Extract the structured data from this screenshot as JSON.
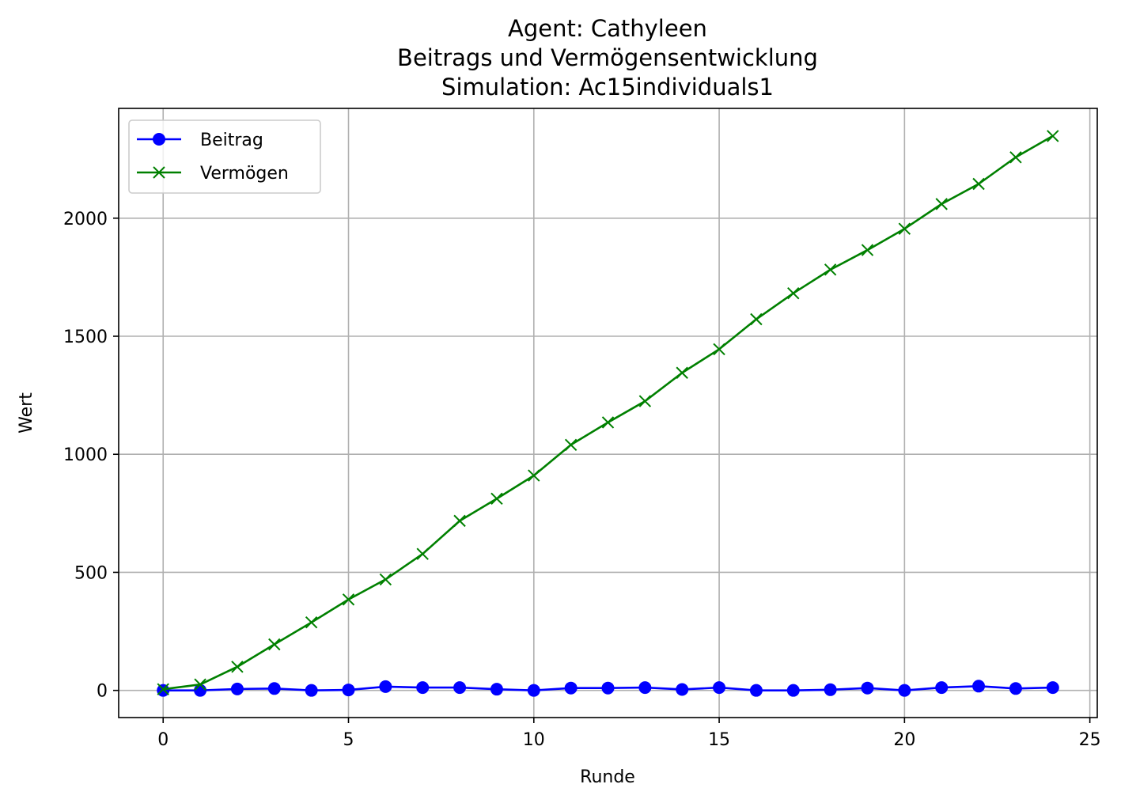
{
  "chart_data": {
    "type": "line",
    "title": [
      "Agent: Cathyleen",
      "Beitrags und Vermögensentwicklung",
      "Simulation: Ac15individuals1"
    ],
    "xlabel": "Runde",
    "ylabel": "Wert",
    "xlim": [
      -1.2,
      25.2
    ],
    "ylim": [
      -115,
      2465
    ],
    "xticks": [
      0,
      5,
      10,
      15,
      20,
      25
    ],
    "yticks": [
      0,
      500,
      1000,
      1500,
      2000
    ],
    "grid": true,
    "legend_position": "upper-left",
    "x": [
      0,
      1,
      2,
      3,
      4,
      5,
      6,
      7,
      8,
      9,
      10,
      11,
      12,
      13,
      14,
      15,
      16,
      17,
      18,
      19,
      20,
      21,
      22,
      23,
      24
    ],
    "series": [
      {
        "name": "Beitrag",
        "color": "#0000ff",
        "marker": "circle",
        "values": [
          0,
          0,
          6,
          8,
          0,
          2,
          16,
          12,
          12,
          5,
          0,
          10,
          10,
          12,
          4,
          12,
          0,
          0,
          3,
          10,
          0,
          12,
          18,
          8,
          12
        ]
      },
      {
        "name": "Vermögen",
        "color": "#008000",
        "marker": "x",
        "values": [
          5,
          25,
          100,
          195,
          288,
          385,
          470,
          578,
          718,
          812,
          910,
          1040,
          1135,
          1225,
          1345,
          1445,
          1572,
          1682,
          1782,
          1865,
          1955,
          2060,
          2145,
          2258,
          2348
        ]
      }
    ]
  }
}
